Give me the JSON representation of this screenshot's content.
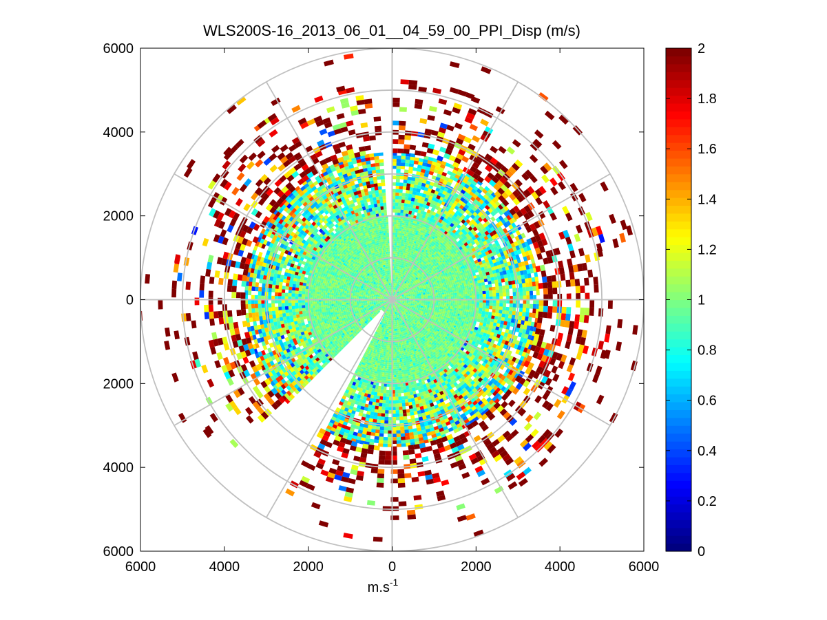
{
  "chart_data": {
    "type": "heatmap",
    "subtype": "polar-ppi",
    "title": "WLS200S-16_2013_06_01__04_59_00_PPI_Disp (m/s)",
    "xlabel": "m.s",
    "xlabel_superscript": "-1",
    "ylabel": "",
    "xlim": [
      -6000,
      6000
    ],
    "ylim": [
      -6000,
      6000
    ],
    "x_ticks": [
      -6000,
      -4000,
      -2000,
      0,
      2000,
      4000,
      6000
    ],
    "x_tick_labels": [
      "6000",
      "4000",
      "2000",
      "0",
      "2000",
      "4000",
      "6000"
    ],
    "y_ticks": [
      6000,
      4000,
      2000,
      0,
      -2000,
      -4000,
      -6000
    ],
    "y_tick_labels": [
      "6000",
      "4000",
      "2000",
      "0",
      "2000",
      "4000",
      "6000"
    ],
    "range_rings": [
      1000,
      2000,
      3000,
      4000,
      5000,
      6000
    ],
    "radial_spokes_deg": [
      0,
      30,
      60,
      90,
      120,
      150,
      180,
      210,
      240,
      270,
      300,
      330
    ],
    "max_range": 6000,
    "colorbar": {
      "colormap": "jet",
      "min": 0,
      "max": 2,
      "ticks": [
        0,
        0.2,
        0.4,
        0.6,
        0.8,
        1,
        1.2,
        1.4,
        1.6,
        1.8,
        2
      ],
      "tick_labels": [
        "0",
        "0.2",
        "0.4",
        "0.6",
        "0.8",
        "1",
        "1.2",
        "1.4",
        "1.6",
        "1.8",
        "2"
      ],
      "levels": 64
    },
    "field_profile": {
      "description_by_range_m": [
        {
          "range": [
            0,
            2000
          ],
          "typical_value": 0.95,
          "coverage": 1.0
        },
        {
          "range": [
            2000,
            3500
          ],
          "typical_value": 1.0,
          "coverage": 0.95
        },
        {
          "range": [
            3500,
            4500
          ],
          "typical_value": 1.5,
          "coverage": 0.55
        },
        {
          "range": [
            4500,
            5000
          ],
          "typical_value": 2.0,
          "coverage": 0.3
        }
      ],
      "gaps_bearing_deg": [
        [
          356,
          360
        ],
        [
          207,
          214
        ],
        [
          214,
          225
        ]
      ],
      "colors": {
        "high": "#800000",
        "mid": "#7fff7f",
        "low": "#00008f"
      }
    }
  }
}
